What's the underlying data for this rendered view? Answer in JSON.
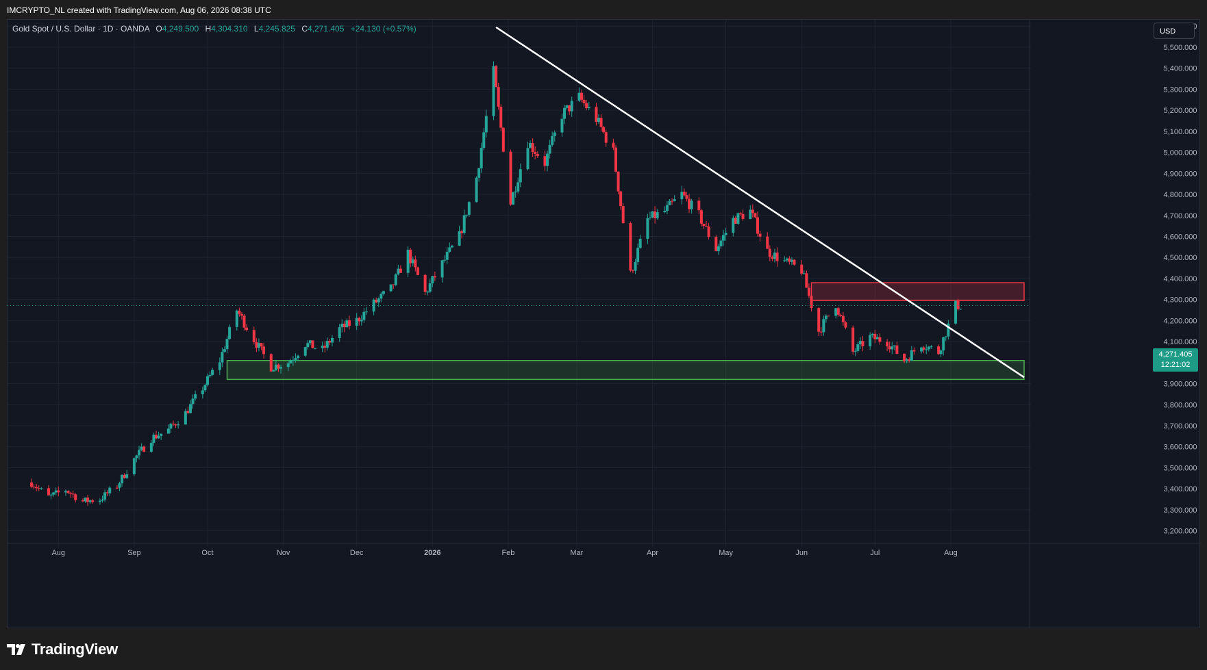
{
  "header": {
    "credit": "IMCRYPTO_NL created with TradingView.com, Aug 06, 2026 08:38 UTC"
  },
  "legend": {
    "symbol": "Gold Spot / U.S. Dollar · 1D · OANDA",
    "open_key": "O",
    "open": "4,249.500",
    "high_key": "H",
    "high": "4,304.310",
    "low_key": "L",
    "low": "4,245.825",
    "close_key": "C",
    "close": "4,271.405",
    "change": "+24.130 (+0.57%)"
  },
  "currency_button": "USD",
  "last_price": {
    "value": "4,271.405",
    "countdown": "12:21:02",
    "color": "#1e9b87"
  },
  "footer": {
    "brand": "TradingView"
  },
  "colors": {
    "up": "#26a69a",
    "down": "#f23645",
    "support_zone": "#4caf50",
    "resistance_zone": "#f23645",
    "trendline": "#ffffff"
  },
  "chart_data": {
    "type": "candlestick",
    "title": "Gold Spot / U.S. Dollar · 1D · OANDA",
    "x_axis": {
      "labels": [
        {
          "label": "Aug",
          "date": "2025-08-01"
        },
        {
          "label": "Sep",
          "date": "2025-09-01"
        },
        {
          "label": "Oct",
          "date": "2025-10-01"
        },
        {
          "label": "Nov",
          "date": "2025-11-01"
        },
        {
          "label": "Dec",
          "date": "2025-12-01"
        },
        {
          "label": "2026",
          "date": "2026-01-01"
        },
        {
          "label": "Feb",
          "date": "2026-02-01"
        },
        {
          "label": "Mar",
          "date": "2026-03-01"
        },
        {
          "label": "Apr",
          "date": "2026-04-01"
        },
        {
          "label": "May",
          "date": "2026-05-01"
        },
        {
          "label": "Jun",
          "date": "2026-06-01"
        },
        {
          "label": "Jul",
          "date": "2026-07-01"
        },
        {
          "label": "Aug",
          "date": "2026-08-01"
        }
      ],
      "range": [
        "2025-07-21",
        "2026-08-31"
      ]
    },
    "y_axis": {
      "range": [
        3150,
        5630
      ],
      "ticks": [
        "3,200.000",
        "3,300.000",
        "3,400.000",
        "3,500.000",
        "3,600.000",
        "3,700.000",
        "3,800.000",
        "3,900.000",
        "4,000.000",
        "4,100.000",
        "4,200.000",
        "4,300.000",
        "4,400.000",
        "4,500.000",
        "4,600.000",
        "4,700.000",
        "4,800.000",
        "4,900.000",
        "5,000.000",
        "5,100.000",
        "5,200.000",
        "5,300.000",
        "5,400.000",
        "5,500.000",
        "5,600.000"
      ]
    },
    "grid": true,
    "closes": [
      {
        "date": "2025-07-21",
        "close": 3430
      },
      {
        "date": "2025-07-28",
        "close": 3360
      },
      {
        "date": "2025-08-04",
        "close": 3395
      },
      {
        "date": "2025-08-11",
        "close": 3340
      },
      {
        "date": "2025-08-18",
        "close": 3350
      },
      {
        "date": "2025-08-25",
        "close": 3415
      },
      {
        "date": "2025-09-01",
        "close": 3540
      },
      {
        "date": "2025-09-08",
        "close": 3640
      },
      {
        "date": "2025-09-15",
        "close": 3680
      },
      {
        "date": "2025-09-22",
        "close": 3760
      },
      {
        "date": "2025-09-29",
        "close": 3880
      },
      {
        "date": "2025-10-06",
        "close": 4010
      },
      {
        "date": "2025-10-13",
        "close": 4250
      },
      {
        "date": "2025-10-20",
        "close": 4110
      },
      {
        "date": "2025-10-27",
        "close": 3980
      },
      {
        "date": "2025-11-03",
        "close": 4000
      },
      {
        "date": "2025-11-10",
        "close": 4090
      },
      {
        "date": "2025-11-17",
        "close": 4060
      },
      {
        "date": "2025-11-24",
        "close": 4160
      },
      {
        "date": "2025-12-01",
        "close": 4200
      },
      {
        "date": "2025-12-08",
        "close": 4280
      },
      {
        "date": "2025-12-15",
        "close": 4350
      },
      {
        "date": "2025-12-22",
        "close": 4520
      },
      {
        "date": "2025-12-29",
        "close": 4330
      },
      {
        "date": "2026-01-05",
        "close": 4470
      },
      {
        "date": "2026-01-12",
        "close": 4600
      },
      {
        "date": "2026-01-19",
        "close": 4880
      },
      {
        "date": "2026-01-26",
        "close": 5380
      },
      {
        "date": "2026-02-02",
        "close": 4760
      },
      {
        "date": "2026-02-09",
        "close": 5050
      },
      {
        "date": "2026-02-16",
        "close": 4950
      },
      {
        "date": "2026-02-23",
        "close": 5180
      },
      {
        "date": "2026-03-02",
        "close": 5260
      },
      {
        "date": "2026-03-09",
        "close": 5160
      },
      {
        "date": "2026-03-16",
        "close": 5000
      },
      {
        "date": "2026-03-23",
        "close": 4420
      },
      {
        "date": "2026-03-30",
        "close": 4680
      },
      {
        "date": "2026-04-06",
        "close": 4720
      },
      {
        "date": "2026-04-13",
        "close": 4800
      },
      {
        "date": "2026-04-20",
        "close": 4700
      },
      {
        "date": "2026-04-27",
        "close": 4540
      },
      {
        "date": "2026-05-04",
        "close": 4680
      },
      {
        "date": "2026-05-11",
        "close": 4720
      },
      {
        "date": "2026-05-18",
        "close": 4530
      },
      {
        "date": "2026-05-25",
        "close": 4480
      },
      {
        "date": "2026-06-01",
        "close": 4440
      },
      {
        "date": "2026-06-08",
        "close": 4150
      },
      {
        "date": "2026-06-15",
        "close": 4280
      },
      {
        "date": "2026-06-22",
        "close": 4050
      },
      {
        "date": "2026-06-29",
        "close": 4120
      },
      {
        "date": "2026-07-06",
        "close": 4100
      },
      {
        "date": "2026-07-13",
        "close": 4010
      },
      {
        "date": "2026-07-20",
        "close": 4090
      },
      {
        "date": "2026-07-27",
        "close": 4050
      },
      {
        "date": "2026-08-03",
        "close": 4271.405
      }
    ],
    "last_price": 4271.405,
    "drawings": {
      "trendline": {
        "from": {
          "date": "2026-01-27",
          "price": 5595
        },
        "to": {
          "date": "2026-08-31",
          "price": 3930
        }
      },
      "resistance_zone": {
        "from_date": "2026-06-05",
        "to_date": "2026-08-31",
        "low": 4295,
        "high": 4380
      },
      "support_zone": {
        "from_date": "2025-10-09",
        "to_date": "2026-08-31",
        "low": 3920,
        "high": 4010
      }
    }
  }
}
